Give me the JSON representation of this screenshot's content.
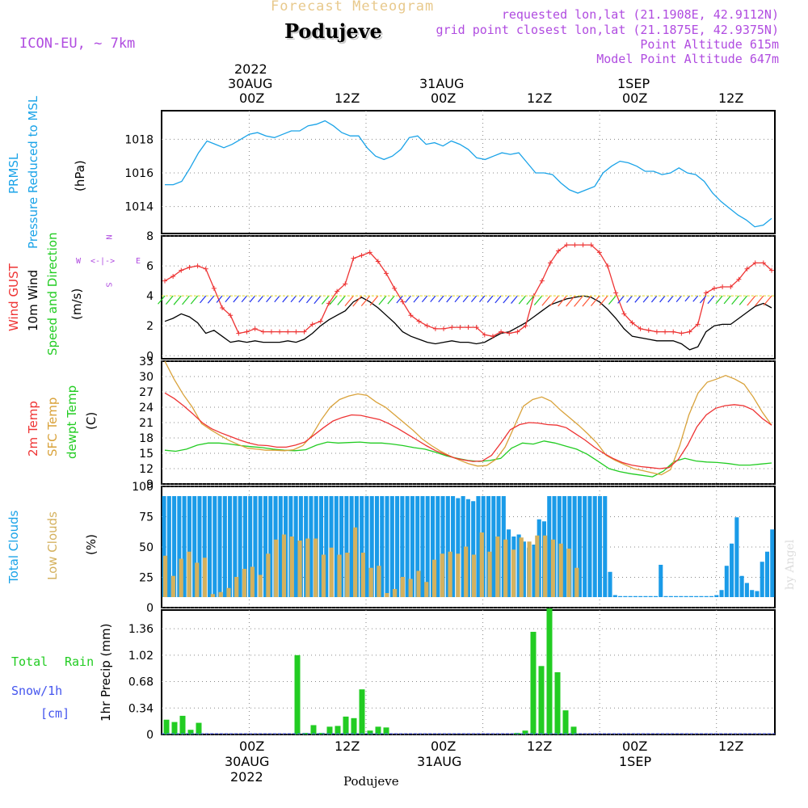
{
  "header": {
    "product": "Forecast Meteogram",
    "location": "Podujeve",
    "model": "ICON-EU, ~ 7km",
    "requested": "requested lon,lat (21.1908E, 42.9112N)",
    "grid_point": "grid point closest lon,lat (21.1875E, 42.9375N)",
    "point_alt": "Point Altitude 615m",
    "model_alt": "Model Point Altitude 647m",
    "credit": "by Angel",
    "footer": "Podujeve"
  },
  "time_axis": {
    "top_labels": [
      {
        "day": "30AUG",
        "year": "2022",
        "hour": "00Z"
      },
      {
        "hour": "12Z"
      },
      {
        "day": "31AUG",
        "hour": "00Z"
      },
      {
        "hour": "12Z"
      },
      {
        "day": "1SEP",
        "hour": "00Z"
      },
      {
        "hour": "12Z"
      }
    ],
    "bottom_labels": [
      {
        "hour": "00Z",
        "day": "30AUG",
        "year": "2022"
      },
      {
        "hour": "12Z"
      },
      {
        "hour": "00Z",
        "day": "31AUG"
      },
      {
        "hour": "12Z"
      },
      {
        "hour": "00Z",
        "day": "1SEP"
      },
      {
        "hour": "12Z"
      }
    ]
  },
  "colors": {
    "pressure": "#1aa3e8",
    "gust": "#ee3333",
    "wind": "#000000",
    "temp2m": "#ee3333",
    "sfc": "#d9a23a",
    "dewpt": "#22cc22",
    "total_clouds": "#1a9be8",
    "low_clouds": "#d4b15e",
    "rain": "#22cc22",
    "snow": "#4455ee",
    "compass": "#b04ce0",
    "credit": "#dddddd"
  },
  "panels": {
    "pressure": {
      "labels": [
        "PRMSL",
        "Pressure Reduced to MSL",
        "(hPa)"
      ],
      "ticks": [
        "1014",
        "1016",
        "1018"
      ]
    },
    "wind": {
      "labels": [
        "Wind GUST",
        "10m Wind",
        "Speed and Direction",
        "(m/s)"
      ],
      "compass": {
        "n": "N",
        "s": "S",
        "e": "E",
        "w": "W"
      },
      "ticks": [
        "0",
        "2",
        "4",
        "6",
        "8"
      ]
    },
    "temp": {
      "labels": [
        "2m Temp",
        "SFC Temp",
        "dewpt Temp",
        "(C)"
      ],
      "ticks": [
        "9",
        "12",
        "15",
        "18",
        "21",
        "24",
        "27",
        "30",
        "33"
      ]
    },
    "clouds": {
      "labels": [
        "Total Clouds",
        "Low Clouds",
        "(%)"
      ],
      "ticks": [
        "0",
        "25",
        "50",
        "75",
        "100"
      ]
    },
    "precip": {
      "labels": [
        "Total",
        "Rain",
        "Snow/1h",
        "[cm]",
        "1hr Precip (mm)"
      ],
      "ticks": [
        "0",
        "0.34",
        "0.68",
        "1.02",
        "1.36"
      ]
    }
  },
  "chart_data": [
    {
      "type": "line",
      "title": "PRMSL Pressure Reduced to MSL",
      "ylabel": "hPa",
      "x_start_hours": -9,
      "x_end_hours": 54,
      "ylim": [
        1012.4,
        1019.7
      ],
      "series": [
        {
          "name": "PRMSL",
          "values": [
            1015.3,
            1015.3,
            1015.5,
            1016.3,
            1017.2,
            1017.9,
            1017.7,
            1017.5,
            1017.7,
            1018.0,
            1018.3,
            1018.4,
            1018.2,
            1018.1,
            1018.3,
            1018.5,
            1018.5,
            1018.8,
            1018.9,
            1019.1,
            1018.8,
            1018.4,
            1018.2,
            1018.2,
            1017.5,
            1017.0,
            1016.8,
            1017.0,
            1017.4,
            1018.1,
            1018.2,
            1017.7,
            1017.8,
            1017.6,
            1017.9,
            1017.7,
            1017.4,
            1016.9,
            1016.8,
            1017.0,
            1017.2,
            1017.1,
            1017.2,
            1016.6,
            1016.0,
            1016.0,
            1015.9,
            1015.4,
            1015.0,
            1014.8,
            1015.0,
            1015.2,
            1016.0,
            1016.4,
            1016.7,
            1016.6,
            1016.4,
            1016.1,
            1016.1,
            1015.9,
            1016.0,
            1016.3,
            1016.0,
            1015.9,
            1015.5,
            1014.8,
            1014.3,
            1013.9,
            1013.5,
            1013.2,
            1012.8,
            1012.9,
            1013.3
          ]
        }
      ]
    },
    {
      "type": "line",
      "title": "Wind GUST and 10m Wind",
      "ylabel": "m/s",
      "x_start_hours": -9,
      "x_end_hours": 54,
      "ylim": [
        -0.2,
        8
      ],
      "series": [
        {
          "name": "Wind GUST",
          "values": [
            5.0,
            5.3,
            5.7,
            5.9,
            6.0,
            5.8,
            4.5,
            3.2,
            2.7,
            1.5,
            1.6,
            1.8,
            1.6,
            1.6,
            1.6,
            1.6,
            1.6,
            1.6,
            2.1,
            2.3,
            3.5,
            4.3,
            4.8,
            6.5,
            6.7,
            6.9,
            6.3,
            5.5,
            4.5,
            3.6,
            2.7,
            2.3,
            2.0,
            1.8,
            1.8,
            1.9,
            1.9,
            1.9,
            1.9,
            1.4,
            1.3,
            1.6,
            1.5,
            1.6,
            2.0,
            4.0,
            5.0,
            6.2,
            7.0,
            7.4,
            7.4,
            7.4,
            7.4,
            6.9,
            6.0,
            4.2,
            2.8,
            2.2,
            1.8,
            1.7,
            1.6,
            1.6,
            1.6,
            1.5,
            1.6,
            2.1,
            4.2,
            4.5,
            4.6,
            4.6,
            5.1,
            5.8,
            6.2,
            6.2,
            5.7
          ]
        },
        {
          "name": "10m Wind",
          "values": [
            2.3,
            2.5,
            2.8,
            2.6,
            2.2,
            1.5,
            1.7,
            1.3,
            0.9,
            1.0,
            0.9,
            1.0,
            0.9,
            0.9,
            0.9,
            1.0,
            0.9,
            1.1,
            1.5,
            2.0,
            2.4,
            2.7,
            3.0,
            3.6,
            3.9,
            3.6,
            3.2,
            2.7,
            2.2,
            1.6,
            1.3,
            1.1,
            0.9,
            0.8,
            0.9,
            1.0,
            0.9,
            0.9,
            0.8,
            0.9,
            1.2,
            1.5,
            1.6,
            1.9,
            2.2,
            2.6,
            3.0,
            3.4,
            3.6,
            3.8,
            3.9,
            4.0,
            3.9,
            3.6,
            3.1,
            2.5,
            1.8,
            1.3,
            1.2,
            1.1,
            1.0,
            1.0,
            1.0,
            0.8,
            0.4,
            0.6,
            1.6,
            2.0,
            2.1,
            2.1,
            2.5,
            2.9,
            3.3,
            3.5,
            3.2
          ]
        }
      ]
    },
    {
      "type": "line",
      "title": "2m Temp / SFC Temp / dewpt Temp",
      "ylabel": "C",
      "x_start_hours": -9,
      "x_end_hours": 54,
      "ylim": [
        9,
        33
      ],
      "series": [
        {
          "name": "2m Temp",
          "values": [
            26.8,
            25.7,
            24.3,
            22.7,
            21.0,
            19.8,
            19.0,
            18.3,
            17.6,
            17.0,
            16.6,
            16.5,
            16.2,
            16.2,
            16.6,
            17.2,
            18.6,
            20.0,
            21.3,
            22.0,
            22.5,
            22.4,
            22.0,
            21.6,
            20.8,
            19.8,
            18.7,
            17.6,
            16.5,
            15.5,
            14.8,
            14.1,
            13.7,
            13.4,
            13.5,
            14.6,
            17.0,
            19.6,
            20.6,
            21.0,
            20.9,
            20.6,
            20.5,
            20.0,
            18.8,
            17.6,
            16.2,
            15.0,
            14.0,
            13.2,
            12.7,
            12.4,
            12.2,
            12.0,
            12.2,
            13.8,
            16.6,
            20.2,
            22.5,
            23.8,
            24.3,
            24.5,
            24.3,
            23.5,
            21.8,
            20.5
          ]
        },
        {
          "name": "SFC Temp",
          "values": [
            33.0,
            29.5,
            26.5,
            24.0,
            20.8,
            19.6,
            18.5,
            17.5,
            16.7,
            16.0,
            15.8,
            15.6,
            15.6,
            15.5,
            15.7,
            16.5,
            18.5,
            21.5,
            24.0,
            25.5,
            26.2,
            26.6,
            26.3,
            25.0,
            24.0,
            22.5,
            21.0,
            19.5,
            17.8,
            16.5,
            15.4,
            14.5,
            13.7,
            13.0,
            12.5,
            12.6,
            13.8,
            16.2,
            20.2,
            24.2,
            25.5,
            26.0,
            25.2,
            23.5,
            22.0,
            20.5,
            18.8,
            17.0,
            14.6,
            13.6,
            12.8,
            12.0,
            11.6,
            11.2,
            10.8,
            11.8,
            16.5,
            22.5,
            26.8,
            28.9,
            29.5,
            30.2,
            29.5,
            28.5,
            26.0,
            23.0,
            20.5
          ]
        },
        {
          "name": "dewpt Temp",
          "values": [
            15.6,
            15.4,
            15.8,
            16.6,
            17.0,
            17.0,
            16.8,
            16.5,
            16.3,
            16.1,
            15.8,
            15.6,
            15.5,
            15.7,
            16.6,
            17.2,
            17.0,
            17.1,
            17.2,
            17.0,
            17.0,
            16.8,
            16.5,
            16.1,
            15.8,
            15.2,
            14.5,
            14.0,
            13.6,
            13.4,
            13.6,
            14.0,
            16.0,
            17.0,
            16.8,
            17.4,
            17.0,
            16.4,
            15.8,
            14.8,
            13.4,
            12.0,
            11.4,
            11.0,
            10.7,
            10.4,
            11.5,
            13.4,
            14.0,
            13.5,
            13.3,
            13.2,
            13.0,
            12.7,
            12.7,
            12.9,
            13.1
          ]
        }
      ]
    },
    {
      "type": "bar",
      "title": "Total Clouds / Low Clouds",
      "ylabel": "%",
      "x_start_hours": -9,
      "x_end_hours": 54,
      "ylim": [
        0,
        100
      ],
      "series": [
        {
          "name": "Total Clouds",
          "values": [
            100,
            100,
            100,
            100,
            100,
            100,
            100,
            100,
            100,
            100,
            100,
            100,
            100,
            100,
            100,
            100,
            100,
            100,
            100,
            100,
            100,
            100,
            100,
            100,
            100,
            100,
            100,
            100,
            100,
            100,
            100,
            100,
            100,
            100,
            100,
            100,
            100,
            100,
            100,
            100,
            100,
            100,
            100,
            100,
            100,
            100,
            100,
            100,
            100,
            100,
            100,
            100,
            100,
            100,
            100,
            100,
            100,
            100,
            98,
            100,
            97,
            95,
            100,
            100,
            100,
            100,
            100,
            100,
            67,
            60,
            62,
            55,
            49,
            52,
            77,
            75,
            100,
            100,
            100,
            100,
            100,
            100,
            100,
            100,
            100,
            100,
            100,
            100,
            25,
            2,
            1,
            1,
            1,
            1,
            1,
            1,
            1,
            1,
            32,
            1,
            1,
            1,
            1,
            1,
            1,
            1,
            1,
            1,
            1,
            2,
            7,
            31,
            53,
            79,
            21,
            14,
            7,
            6,
            35,
            45,
            67
          ]
        },
        {
          "name": "Low Clouds",
          "values": [
            41,
            21,
            38,
            45,
            34,
            39,
            3,
            5,
            9,
            20,
            28,
            30,
            22,
            43,
            57,
            62,
            60,
            56,
            58,
            58,
            42,
            49,
            42,
            44,
            69,
            44,
            29,
            31,
            4,
            8,
            20,
            18,
            26,
            15,
            37,
            43,
            45,
            43,
            50,
            42,
            64,
            45,
            60,
            57,
            47,
            59,
            55,
            61,
            61,
            57,
            53,
            48,
            29
          ]
        }
      ]
    },
    {
      "type": "bar",
      "title": "Total Rain / Snow 1h",
      "ylabel": "1hr Precip (mm)",
      "x_start_hours": -9,
      "x_end_hours": 54,
      "ylim": [
        0,
        1.6
      ],
      "series": [
        {
          "name": "Total Rain",
          "values": [
            0.19,
            0.16,
            0.24,
            0.06,
            0.15,
            0,
            0,
            0,
            0,
            0,
            0,
            0,
            0,
            0,
            0,
            0,
            0,
            0,
            0,
            0,
            0,
            0,
            0,
            0,
            0,
            0,
            0,
            0,
            0,
            0,
            0,
            0,
            0,
            0,
            0,
            0,
            0,
            0,
            0,
            0,
            0,
            0,
            0,
            0,
            0,
            0,
            0,
            0,
            1.02,
            0,
            0.12,
            0,
            0.1,
            0.11,
            0.23,
            0.21,
            0.58,
            0.05,
            0.1,
            0.09,
            0,
            0,
            0,
            0,
            0,
            0,
            0,
            0,
            0,
            0,
            0,
            0,
            0,
            0,
            0,
            0,
            0,
            0,
            0,
            0,
            0,
            0,
            0,
            0,
            0,
            0,
            0,
            0,
            0,
            0,
            0,
            0,
            0,
            0,
            0,
            0,
            0,
            0,
            0,
            0,
            0,
            0,
            0,
            0,
            0,
            0,
            0,
            0,
            0,
            0,
            0,
            0,
            0,
            0,
            0,
            0,
            0,
            0,
            0,
            0,
            0,
            0,
            0,
            0,
            0,
            0,
            0,
            0,
            0,
            0,
            0,
            0,
            0,
            0,
            0,
            0,
            0,
            0,
            0,
            0,
            0,
            0,
            0,
            0,
            0,
            0,
            0,
            0,
            0,
            0,
            0,
            0,
            0,
            0,
            0,
            0,
            0,
            0,
            0,
            0,
            0,
            0,
            0,
            0,
            0,
            0,
            0,
            0,
            0,
            0,
            0,
            0,
            0,
            0,
            0,
            0,
            0,
            0,
            0,
            0,
            0,
            0,
            0,
            0,
            0,
            0,
            0,
            0,
            0,
            0,
            0,
            0,
            0,
            0,
            0,
            0,
            0,
            0,
            0,
            0,
            0,
            0,
            0,
            0,
            0,
            0,
            0,
            0,
            0,
            0,
            0,
            0,
            0,
            0,
            0,
            0,
            0,
            0,
            0,
            0,
            0,
            0,
            0,
            0,
            0,
            0,
            0,
            0,
            0,
            0,
            0,
            0,
            0,
            0,
            0,
            0,
            0,
            0,
            0,
            0,
            0,
            0,
            0,
            0
          ]
        },
        {
          "name": "Snow/1h",
          "values": [
            0
          ]
        }
      ]
    }
  ]
}
